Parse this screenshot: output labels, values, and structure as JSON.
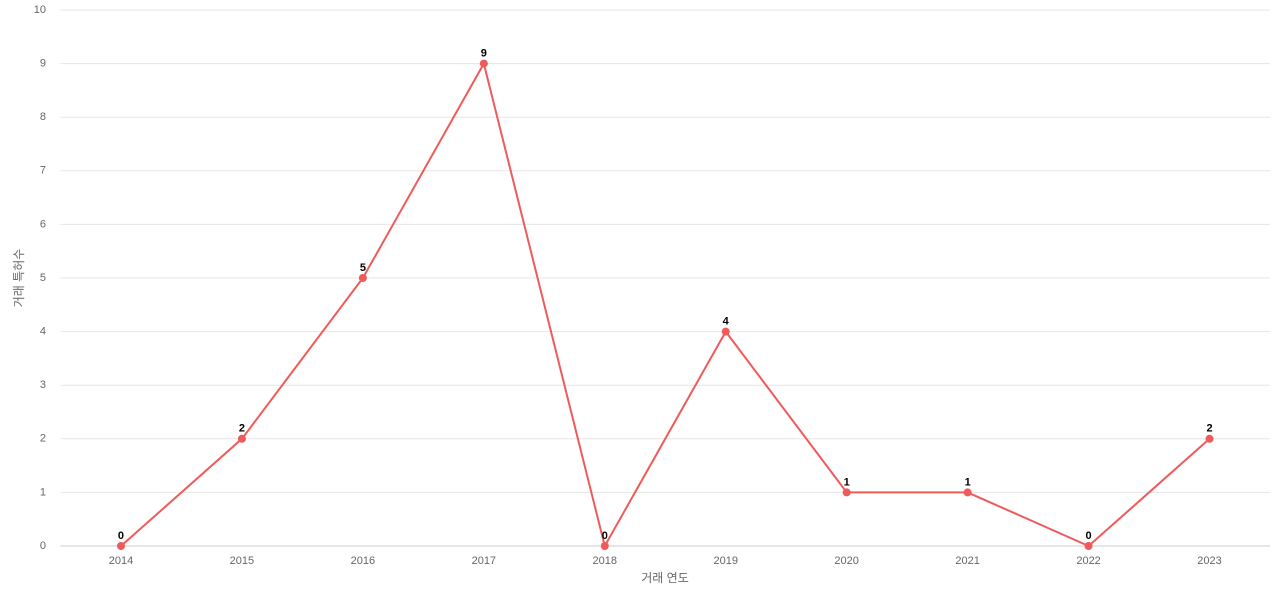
{
  "chart_data": {
    "type": "line",
    "x_label": "거래 연도",
    "y_label": "거래 특허수",
    "categories": [
      "2014",
      "2015",
      "2016",
      "2017",
      "2018",
      "2019",
      "2020",
      "2021",
      "2022",
      "2023"
    ],
    "series": [
      {
        "color": "#ef5a5a",
        "values": [
          0,
          2,
          5,
          9,
          0,
          4,
          1,
          1,
          0,
          2
        ]
      }
    ],
    "ylim": [
      0,
      10
    ],
    "yticks": [
      0,
      1,
      2,
      3,
      4,
      5,
      6,
      7,
      8,
      9,
      10
    ],
    "grid": true
  }
}
